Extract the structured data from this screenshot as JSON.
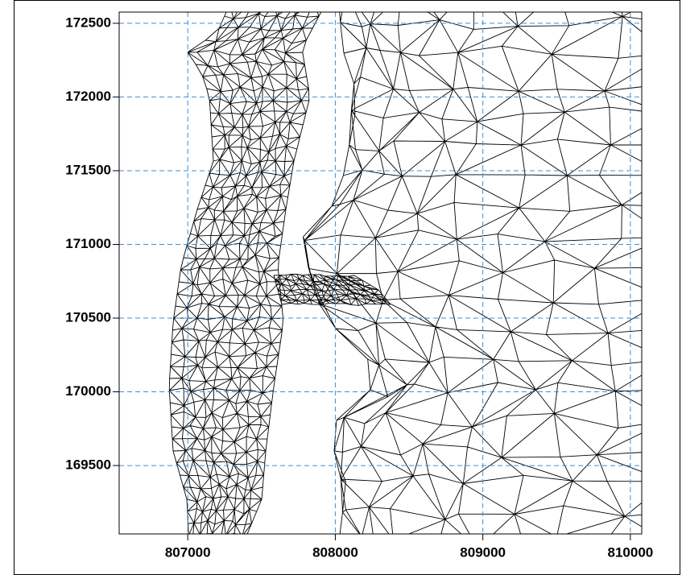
{
  "chart_data": {
    "type": "mesh",
    "xlim": [
      806535,
      810077
    ],
    "ylim": [
      169036,
      172576
    ],
    "xticks": [
      807000,
      808000,
      809000,
      810000
    ],
    "yticks": [
      169500,
      170000,
      170500,
      171000,
      171500,
      172000,
      172500
    ],
    "grid": true,
    "grid_color": "#3d8fd6",
    "color": "#000000"
  }
}
